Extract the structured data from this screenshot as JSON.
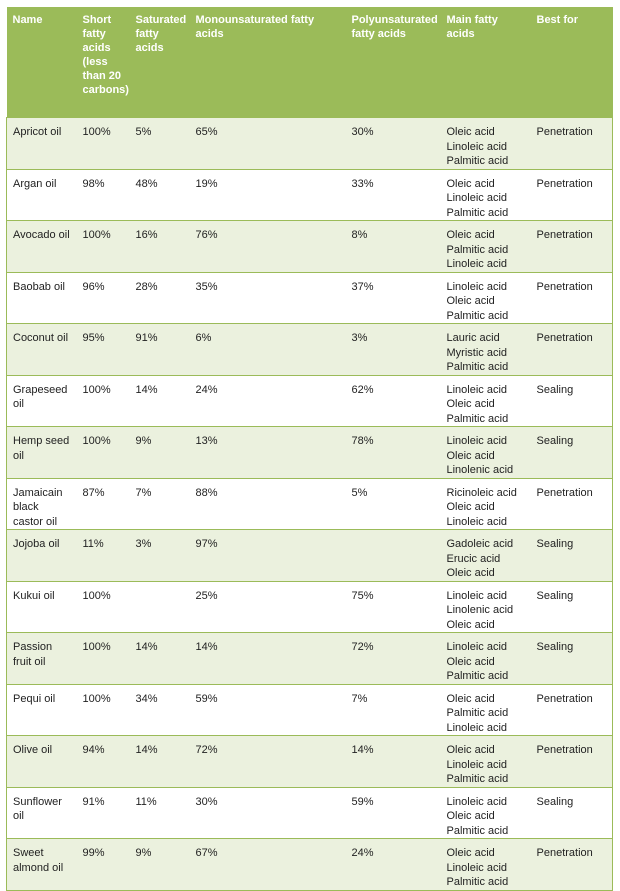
{
  "headers": [
    "Name",
    "Short fatty acids (less than 20 carbons)",
    "Saturated fatty acids",
    "Monounsaturated fatty acids",
    "Polyunsaturated fatty acids",
    "Main fatty acids",
    "Best for"
  ],
  "rows": [
    {
      "name": "Apricot oil",
      "short": "100%",
      "saturated": "5%",
      "mono": "65%",
      "poly": "30%",
      "acids": [
        "Oleic acid",
        "Linoleic acid",
        "Palmitic acid"
      ],
      "best": "Penetration"
    },
    {
      "name": "Argan oil",
      "short": "98%",
      "saturated": "48%",
      "mono": "19%",
      "poly": "33%",
      "acids": [
        "Oleic acid",
        "Linoleic acid",
        "Palmitic acid"
      ],
      "best": "Penetration"
    },
    {
      "name": "Avocado oil",
      "short": "100%",
      "saturated": "16%",
      "mono": "76%",
      "poly": "8%",
      "acids": [
        "Oleic acid",
        "Palmitic acid",
        "Linoleic acid"
      ],
      "best": "Penetration"
    },
    {
      "name": "Baobab oil",
      "short": "96%",
      "saturated": "28%",
      "mono": "35%",
      "poly": "37%",
      "acids": [
        "Linoleic acid",
        "Oleic acid",
        "Palmitic acid"
      ],
      "best": "Penetration"
    },
    {
      "name": "Coconut oil",
      "short": "95%",
      "saturated": "91%",
      "mono": "6%",
      "poly": "3%",
      "acids": [
        "Lauric acid",
        "Myristic acid",
        "Palmitic acid"
      ],
      "best": "Penetration"
    },
    {
      "name": "Grapeseed oil",
      "short": "100%",
      "saturated": "14%",
      "mono": "24%",
      "poly": "62%",
      "acids": [
        "Linoleic acid",
        "Oleic acid",
        "Palmitic acid"
      ],
      "best": "Sealing"
    },
    {
      "name": "Hemp seed oil",
      "short": "100%",
      "saturated": "9%",
      "mono": "13%",
      "poly": "78%",
      "acids": [
        "Linoleic acid",
        "Oleic acid",
        "Linolenic acid"
      ],
      "best": "Sealing"
    },
    {
      "name": "Jamaicain black castor oil",
      "short": "87%",
      "saturated": "7%",
      "mono": "88%",
      "poly": "5%",
      "acids": [
        "Ricinoleic acid",
        "Oleic acid",
        "Linoleic acid"
      ],
      "best": "Penetration"
    },
    {
      "name": "Jojoba oil",
      "short": "11%",
      "saturated": "3%",
      "mono": "97%",
      "poly": "",
      "acids": [
        "Gadoleic acid",
        "Erucic acid",
        "Oleic acid"
      ],
      "best": "Sealing"
    },
    {
      "name": "Kukui oil",
      "short": "100%",
      "saturated": "",
      "mono": "25%",
      "poly": "75%",
      "acids": [
        "Linoleic acid",
        "Linolenic acid",
        "Oleic acid"
      ],
      "best": "Sealing"
    },
    {
      "name": "Passion fruit oil",
      "short": "100%",
      "saturated": "14%",
      "mono": "14%",
      "poly": "72%",
      "acids": [
        "Linoleic acid",
        "Oleic acid",
        "Palmitic acid"
      ],
      "best": "Sealing"
    },
    {
      "name": "Pequi oil",
      "short": "100%",
      "saturated": "34%",
      "mono": "59%",
      "poly": "7%",
      "acids": [
        "Oleic acid",
        "Palmitic acid",
        "Linoleic acid"
      ],
      "best": "Penetration"
    },
    {
      "name": "Olive oil",
      "short": "94%",
      "saturated": "14%",
      "mono": "72%",
      "poly": "14%",
      "acids": [
        "Oleic acid",
        "Linoleic acid",
        "Palmitic acid"
      ],
      "best": "Penetration"
    },
    {
      "name": "Sunflower oil",
      "short": "91%",
      "saturated": "11%",
      "mono": "30%",
      "poly": "59%",
      "acids": [
        "Linoleic acid",
        "Oleic acid",
        "Palmitic acid"
      ],
      "best": "Sealing"
    },
    {
      "name": "Sweet almond oil",
      "short": "99%",
      "saturated": "9%",
      "mono": "67%",
      "poly": "24%",
      "acids": [
        "Oleic acid",
        "Linoleic acid",
        "Palmitic acid"
      ],
      "best": "Penetration"
    }
  ]
}
